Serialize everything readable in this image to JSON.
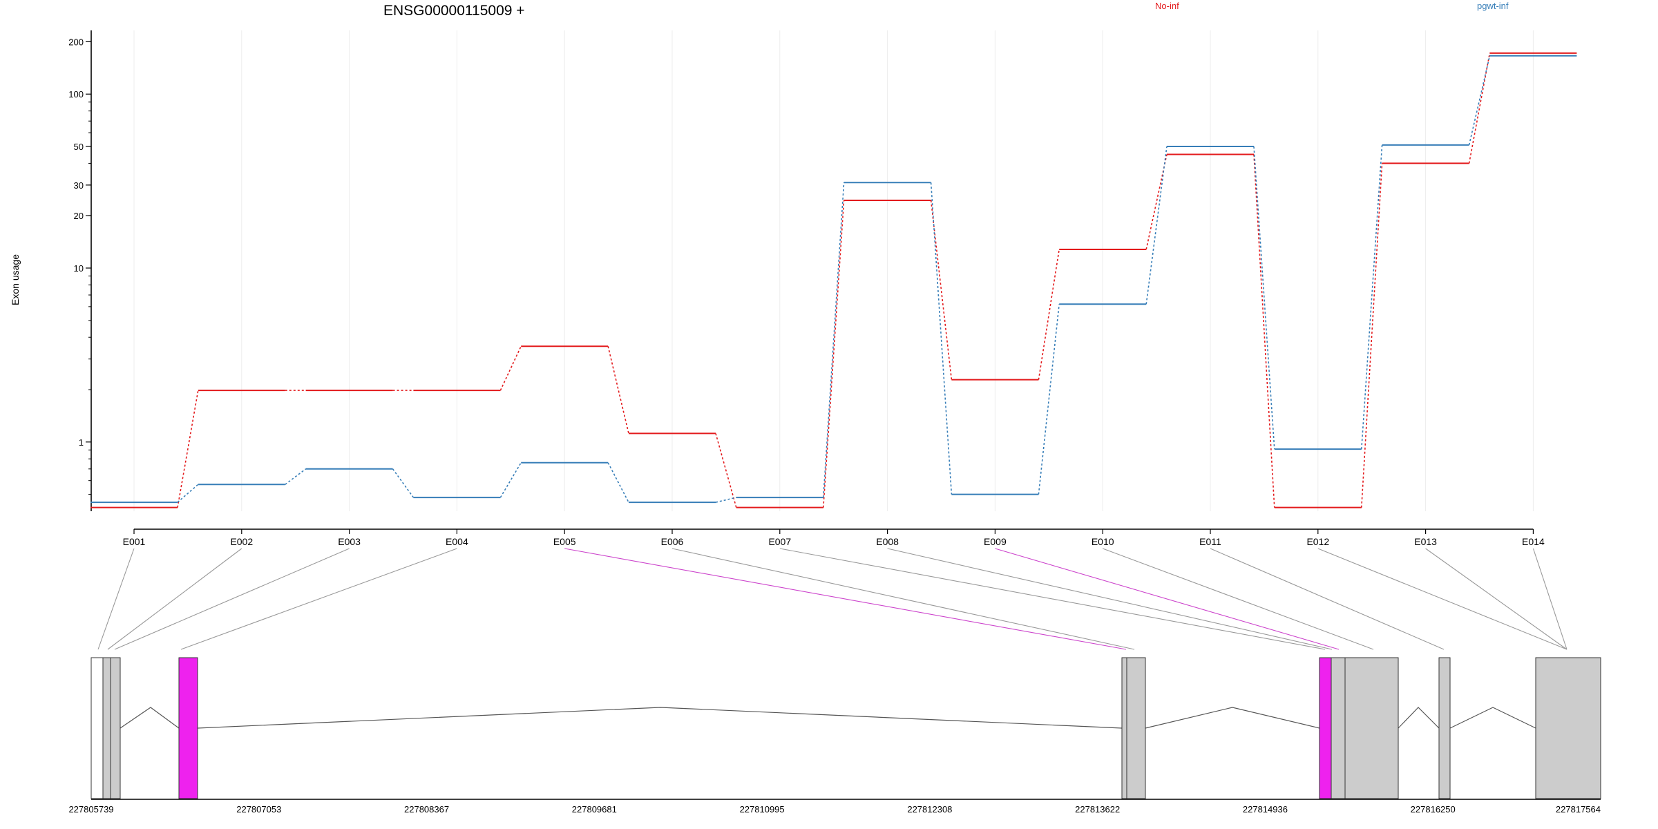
{
  "chart_data": {
    "type": "line",
    "title": "ENSG00000115009 +",
    "ylabel": "Exon usage",
    "yscale": "log",
    "yticks": [
      "200",
      "100",
      "50",
      "30",
      "20",
      "10",
      "1"
    ],
    "ylim": [
      0.4,
      220
    ],
    "categories": [
      "E001",
      "E002",
      "E003",
      "E004",
      "E005",
      "E006",
      "E007",
      "E008",
      "E009",
      "E010",
      "E011",
      "E012",
      "E013",
      "E014"
    ],
    "series": [
      {
        "name": "No-inf",
        "color": "#e31a1c",
        "values": [
          0.42,
          1.98,
          1.98,
          1.98,
          3.55,
          1.12,
          0.42,
          24.5,
          2.28,
          12.8,
          45,
          0.42,
          40,
          172
        ]
      },
      {
        "name": "pgwt-inf",
        "color": "#377eb8",
        "values": [
          0.45,
          0.57,
          0.7,
          0.48,
          0.76,
          0.45,
          0.48,
          31,
          0.5,
          6.2,
          50,
          0.91,
          51,
          166
        ]
      }
    ],
    "gene_model": {
      "coordinate_labels": [
        "227805739",
        "227807053",
        "227808367",
        "227809681",
        "227810995",
        "227812308",
        "227813622",
        "227814936",
        "227816250",
        "227817564"
      ],
      "highlight_color": "#ee22ee",
      "exon_color": "#cccccc",
      "highlighted_exons": [
        "E005",
        "E009"
      ]
    }
  }
}
